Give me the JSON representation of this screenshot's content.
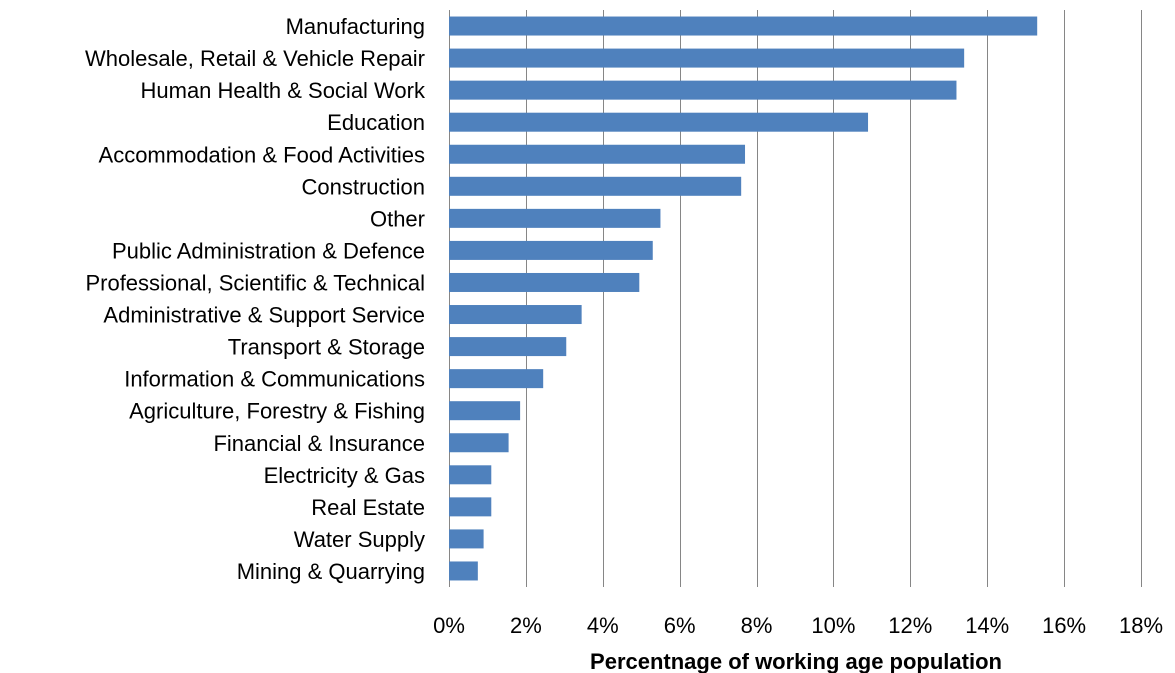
{
  "chart_data": {
    "type": "bar",
    "orientation": "horizontal",
    "title": "",
    "xlabel": "Percentnage of working age population",
    "ylabel": "",
    "xlim": [
      0,
      18
    ],
    "x_ticks": [
      "0%",
      "2%",
      "4%",
      "6%",
      "8%",
      "10%",
      "12%",
      "14%",
      "16%",
      "18%"
    ],
    "grid": "vertical",
    "legend": "none",
    "categories": [
      "Manufacturing",
      "Wholesale, Retail & Vehicle Repair",
      "Human Health & Social Work",
      "Education",
      "Accommodation & Food Activities",
      "Construction",
      "Other",
      "Public Administration & Defence",
      "Professional, Scientific & Technical",
      "Administrative & Support Service",
      "Transport & Storage",
      "Information & Communications",
      "Agriculture, Forestry & Fishing",
      "Financial & Insurance",
      "Electricity & Gas",
      "Real Estate",
      "Water Supply",
      "Mining & Quarrying"
    ],
    "values": [
      15.3,
      13.4,
      13.2,
      10.9,
      7.7,
      7.6,
      5.5,
      5.3,
      4.95,
      3.45,
      3.05,
      2.45,
      1.85,
      1.55,
      1.1,
      1.1,
      0.9,
      0.75
    ],
    "colors": {
      "bar": "#4F81BD",
      "grid": "#868686",
      "text": "#000000"
    }
  }
}
